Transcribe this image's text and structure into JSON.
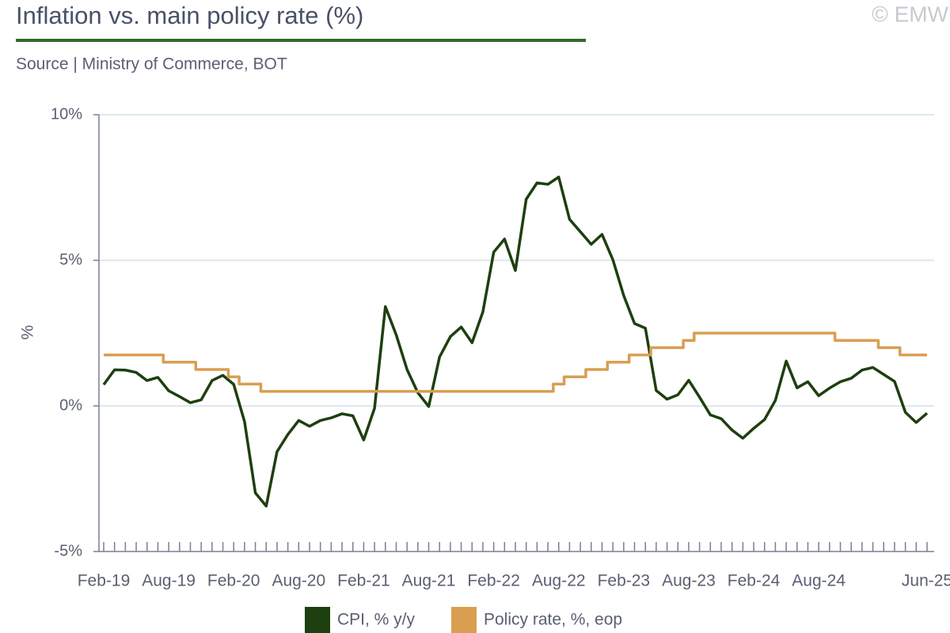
{
  "chart_data": {
    "type": "line",
    "title": "Inflation vs. main policy rate (%)",
    "subtitle": "Source | Ministry of Commerce, BOT",
    "watermark": "© EMW",
    "y_label": "%",
    "categories": [
      "Feb-19",
      null,
      null,
      null,
      null,
      null,
      "Aug-19",
      null,
      null,
      null,
      null,
      null,
      "Feb-20",
      null,
      null,
      null,
      null,
      null,
      "Aug-20",
      null,
      null,
      null,
      null,
      null,
      "Feb-21",
      null,
      null,
      null,
      null,
      null,
      "Aug-21",
      null,
      null,
      null,
      null,
      null,
      "Feb-22",
      null,
      null,
      null,
      null,
      null,
      "Aug-22",
      null,
      null,
      null,
      null,
      null,
      "Feb-23",
      null,
      null,
      null,
      null,
      null,
      "Aug-23",
      null,
      null,
      null,
      null,
      null,
      "Feb-24",
      null,
      null,
      null,
      null,
      null,
      "Aug-24",
      null,
      null,
      null,
      null,
      null,
      null,
      null,
      null,
      null,
      "Jun-25"
    ],
    "ylim": [
      -5,
      10
    ],
    "yticks": [
      {
        "value": -5,
        "label": "-5%"
      },
      {
        "value": 0,
        "label": "0%"
      },
      {
        "value": 5,
        "label": "5%"
      },
      {
        "value": 10,
        "label": "10%"
      }
    ],
    "grid": true,
    "legend": "bottom",
    "series": [
      {
        "name": "CPI, % y/y",
        "color": "#1e3f10",
        "step": false,
        "values": [
          0.73,
          1.24,
          1.23,
          1.15,
          0.87,
          0.98,
          0.52,
          0.32,
          0.11,
          0.21,
          0.87,
          1.05,
          0.74,
          -0.54,
          -2.99,
          -3.44,
          -1.57,
          -0.98,
          -0.5,
          -0.7,
          -0.5,
          -0.41,
          -0.27,
          -0.34,
          -1.17,
          -0.08,
          3.41,
          2.44,
          1.25,
          0.45,
          -0.02,
          1.68,
          2.38,
          2.71,
          2.17,
          3.23,
          5.28,
          5.73,
          4.65,
          7.1,
          7.66,
          7.61,
          7.86,
          6.41,
          5.98,
          5.55,
          5.89,
          5.02,
          3.79,
          2.83,
          2.67,
          0.53,
          0.23,
          0.38,
          0.88,
          0.3,
          -0.31,
          -0.44,
          -0.83,
          -1.11,
          -0.77,
          -0.47,
          0.19,
          1.54,
          0.62,
          0.83,
          0.35,
          0.61,
          0.83,
          0.95,
          1.23,
          1.32,
          1.08,
          0.84,
          -0.22,
          -0.57,
          -0.25
        ]
      },
      {
        "name": "Policy rate, %, eop",
        "color": "#d99e50",
        "step": true,
        "values": [
          1.75,
          1.75,
          1.75,
          1.75,
          1.75,
          1.75,
          1.5,
          1.5,
          1.5,
          1.25,
          1.25,
          1.25,
          1.0,
          0.75,
          0.75,
          0.5,
          0.5,
          0.5,
          0.5,
          0.5,
          0.5,
          0.5,
          0.5,
          0.5,
          0.5,
          0.5,
          0.5,
          0.5,
          0.5,
          0.5,
          0.5,
          0.5,
          0.5,
          0.5,
          0.5,
          0.5,
          0.5,
          0.5,
          0.5,
          0.5,
          0.5,
          0.5,
          0.75,
          1.0,
          1.0,
          1.25,
          1.25,
          1.5,
          1.5,
          1.75,
          1.75,
          2.0,
          2.0,
          2.0,
          2.25,
          2.5,
          2.5,
          2.5,
          2.5,
          2.5,
          2.5,
          2.5,
          2.5,
          2.5,
          2.5,
          2.5,
          2.5,
          2.5,
          2.25,
          2.25,
          2.25,
          2.25,
          2.0,
          2.0,
          1.75,
          1.75,
          1.75
        ]
      }
    ]
  }
}
